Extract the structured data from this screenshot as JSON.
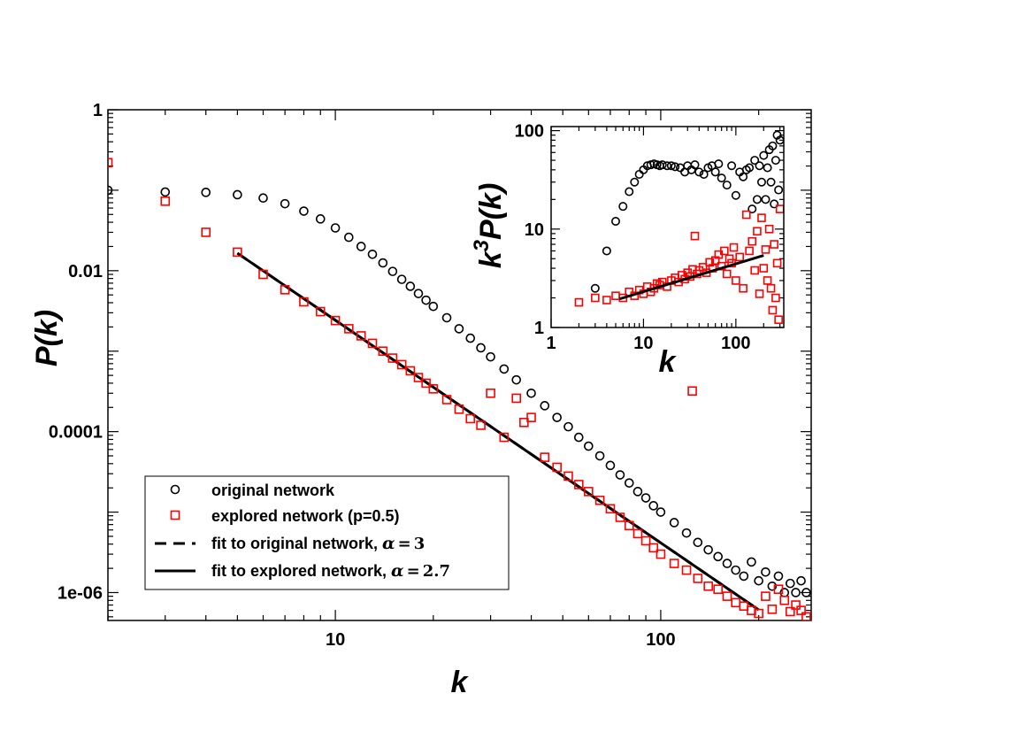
{
  "chart_data": [
    {
      "type": "scatter",
      "scale": "log-log",
      "xlabel": "k",
      "ylabel": "P(k)",
      "xlim": [
        2,
        290
      ],
      "ylim": [
        4.5e-07,
        1.0
      ],
      "x_ticks": [
        {
          "value": 10,
          "label": "10"
        },
        {
          "value": 100,
          "label": "100"
        }
      ],
      "y_ticks": [
        {
          "value": 1,
          "label": "1"
        },
        {
          "value": 0.01,
          "label": "0.01"
        },
        {
          "value": 0.0001,
          "label": "0.0001"
        },
        {
          "value": 1e-06,
          "label": "1e-06"
        }
      ],
      "series": [
        {
          "name": "original network",
          "marker": "circle",
          "color": "#000000",
          "x": [
            2,
            3,
            4,
            5,
            6,
            7,
            8,
            9,
            10,
            11,
            12,
            13,
            14,
            15,
            16,
            17,
            18,
            19,
            20,
            22,
            24,
            26,
            28,
            30,
            33,
            36,
            40,
            44,
            48,
            52,
            56,
            60,
            65,
            70,
            75,
            80,
            85,
            90,
            95,
            100,
            110,
            120,
            130,
            140,
            150,
            160,
            170,
            180,
            190,
            200,
            210,
            220,
            230,
            240,
            250,
            260,
            270,
            280
          ],
          "y": [
            0.1,
            0.095,
            0.094,
            0.088,
            0.08,
            0.068,
            0.055,
            0.044,
            0.034,
            0.026,
            0.02,
            0.016,
            0.0125,
            0.0098,
            0.0078,
            0.0064,
            0.0052,
            0.0043,
            0.0036,
            0.0026,
            0.0019,
            0.00145,
            0.0011,
            0.00085,
            0.0006,
            0.00044,
            0.0003,
            0.00021,
            0.00015,
            0.000115,
            8.5e-05,
            6.6e-05,
            5e-05,
            3.8e-05,
            2.9e-05,
            2.3e-05,
            1.8e-05,
            1.5e-05,
            1.2e-05,
            1e-05,
            7.4e-06,
            5.5e-06,
            4.2e-06,
            3.4e-06,
            2.8e-06,
            2.3e-06,
            1.9e-06,
            1.6e-06,
            2.4e-06,
            1.4e-06,
            1.8e-06,
            1.2e-06,
            1.6e-06,
            1e-06,
            1.3e-06,
            1e-06,
            1.4e-06,
            1e-06
          ]
        },
        {
          "name": "explored network (p=0.5)",
          "marker": "square",
          "color": "#ff0000",
          "x": [
            2,
            3,
            4,
            5,
            6,
            7,
            8,
            9,
            10,
            11,
            12,
            13,
            14,
            15,
            16,
            17,
            18,
            19,
            20,
            22,
            24,
            26,
            28,
            30,
            33,
            36,
            38,
            40,
            44,
            48,
            52,
            56,
            60,
            65,
            70,
            75,
            80,
            85,
            90,
            95,
            100,
            110,
            120,
            125,
            130,
            140,
            150,
            160,
            170,
            180,
            190,
            200,
            210,
            220,
            230,
            240,
            250,
            260,
            270,
            280
          ],
          "y": [
            0.22,
            0.073,
            0.03,
            0.017,
            0.009,
            0.0058,
            0.0041,
            0.0031,
            0.0024,
            0.0019,
            0.00155,
            0.00125,
            0.001,
            0.00082,
            0.00068,
            0.00057,
            0.00047,
            0.0004,
            0.00034,
            0.00025,
            0.00019,
            0.000145,
            0.00012,
            0.0003,
            8.5e-05,
            0.00026,
            0.00013,
            0.00015,
            4.8e-05,
            3.6e-05,
            2.8e-05,
            2.2e-05,
            1.8e-05,
            1.4e-05,
            1.1e-05,
            8.6e-06,
            6.8e-06,
            5.4e-06,
            4.4e-06,
            3.6e-06,
            3e-06,
            2.3e-06,
            1.9e-06,
            0.00032,
            1.5e-06,
            1.2e-06,
            1.1e-06,
            9e-07,
            7.5e-07,
            6.8e-07,
            6e-07,
            5.5e-07,
            9e-07,
            6.2e-07,
            1.1e-06,
            8e-07,
            5.8e-07,
            7e-07,
            6e-07,
            5e-07
          ]
        }
      ],
      "fits": [
        {
          "name": "fit to original network",
          "alpha": "3",
          "style": "dashed",
          "color": "#000000",
          "x": [
            5,
            200
          ],
          "y": [
            0.0165,
            6.1e-07
          ]
        },
        {
          "name": "fit to explored network",
          "alpha": "2.7",
          "style": "solid",
          "color": "#000000",
          "x": [
            5,
            200
          ],
          "y": [
            0.0165,
            6.1e-07
          ]
        }
      ],
      "legend": {
        "placement": "bottom-left",
        "entries": [
          {
            "text": "original network"
          },
          {
            "text": "explored network (p=0.5)"
          },
          {
            "text": "fit to original network,",
            "alpha_symbol": "α",
            "equals": "=",
            "alpha_value": "3"
          },
          {
            "text": "fit to explored network,",
            "alpha_symbol": "α",
            "equals": "=",
            "alpha_value": "2.7"
          }
        ]
      }
    },
    {
      "type": "scatter",
      "role": "inset",
      "placement": "top-right",
      "scale": "log-log",
      "xlabel": "k",
      "ylabel_base": "k",
      "ylabel_sup": "3",
      "ylabel_rest": "P(k)",
      "xlim": [
        1,
        330
      ],
      "ylim": [
        1,
        110
      ],
      "x_ticks": [
        {
          "value": 1,
          "label": "1"
        },
        {
          "value": 10,
          "label": "10"
        },
        {
          "value": 100,
          "label": "100"
        }
      ],
      "y_ticks": [
        {
          "value": 1,
          "label": "1"
        },
        {
          "value": 10,
          "label": "10"
        },
        {
          "value": 100,
          "label": "100"
        }
      ],
      "series": [
        {
          "name": "original network k^3 P(k)",
          "marker": "circle",
          "color": "#000000",
          "x": [
            3,
            4,
            5,
            6,
            7,
            8,
            9,
            10,
            11,
            12,
            13,
            14,
            15,
            16,
            18,
            20,
            22,
            25,
            28,
            30,
            33,
            36,
            40,
            45,
            50,
            55,
            60,
            65,
            70,
            80,
            90,
            100,
            110,
            120,
            130,
            140,
            150,
            160,
            170,
            180,
            190,
            200,
            210,
            220,
            230,
            240,
            250,
            260,
            270,
            280,
            290,
            300
          ],
          "y": [
            2.5,
            6,
            12,
            17,
            24,
            30,
            36,
            40,
            44,
            45,
            46,
            45,
            44,
            45,
            44,
            44,
            43,
            42,
            38,
            44,
            40,
            45,
            38,
            36,
            42,
            44,
            38,
            46,
            33,
            28,
            44,
            22,
            38,
            34,
            40,
            42,
            16,
            50,
            20,
            44,
            30,
            56,
            20,
            42,
            64,
            30,
            70,
            18,
            50,
            90,
            25,
            80
          ]
        },
        {
          "name": "explored network k^3 P(k)",
          "marker": "square",
          "color": "#ff0000",
          "x": [
            2,
            3,
            4,
            5,
            6,
            7,
            8,
            9,
            10,
            11,
            12,
            13,
            14,
            15,
            16,
            18,
            20,
            22,
            24,
            26,
            28,
            30,
            32,
            34,
            36,
            38,
            40,
            44,
            48,
            52,
            56,
            60,
            65,
            70,
            75,
            80,
            85,
            90,
            95,
            100,
            110,
            120,
            130,
            140,
            150,
            160,
            170,
            180,
            190,
            200,
            210,
            220,
            230,
            240,
            250,
            260,
            270,
            280,
            290,
            300
          ],
          "y": [
            1.8,
            2.0,
            1.9,
            2.1,
            2.0,
            2.3,
            2.1,
            2.4,
            2.2,
            2.6,
            2.3,
            2.5,
            2.8,
            2.7,
            2.9,
            2.6,
            3.0,
            3.2,
            2.9,
            3.4,
            3.1,
            3.6,
            3.3,
            3.9,
            8.5,
            3.5,
            3.8,
            4.1,
            3.6,
            4.6,
            4.0,
            4.8,
            5.5,
            4.2,
            6.0,
            3.5,
            5.0,
            4.5,
            6.5,
            3.0,
            5.2,
            2.5,
            14,
            6.0,
            7.5,
            3.8,
            9.5,
            2.2,
            13,
            4.0,
            6.2,
            3.0,
            10,
            2.5,
            1.5,
            7.0,
            2.0,
            4.5,
            1.2,
            16
          ]
        }
      ],
      "fits": [
        {
          "name": "inset fit",
          "style": "solid",
          "color": "#000000",
          "x": [
            5.5,
            200
          ],
          "y": [
            1.95,
            5.4
          ]
        }
      ]
    }
  ]
}
